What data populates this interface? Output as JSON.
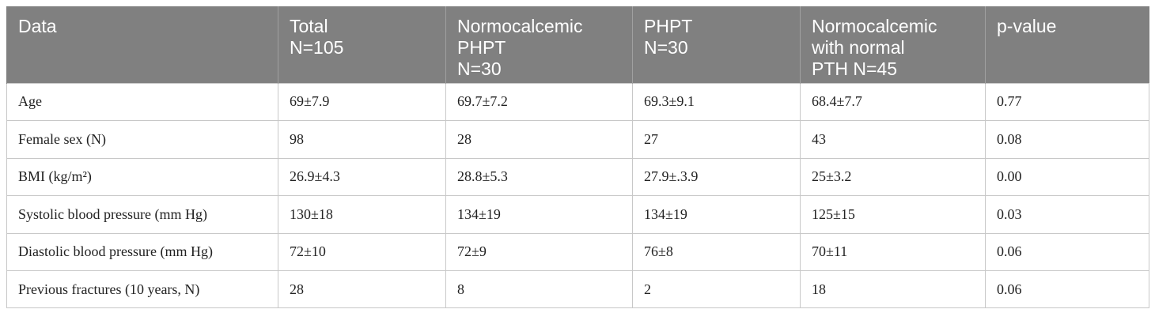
{
  "table": {
    "headers": [
      "Data",
      "Total\nN=105",
      "Normocalcemic\nPHPT\nN=30",
      "PHPT\nN=30",
      "Normocalcemic\nwith normal\nPTH N=45",
      "p-value"
    ],
    "rows": [
      [
        "Age",
        "69±7.9",
        "69.7±7.2",
        "69.3±9.1",
        "68.4±7.7",
        "0.77"
      ],
      [
        "Female sex (N)",
        "98",
        "28",
        "27",
        "43",
        "0.08"
      ],
      [
        "BMI (kg/m²)",
        "26.9±4.3",
        "28.8±5.3",
        "27.9±.3.9",
        "25±3.2",
        "0.00"
      ],
      [
        "Systolic blood pressure (mm Hg)",
        "130±18",
        "134±19",
        "134±19",
        "125±15",
        "0.03"
      ],
      [
        "Diastolic blood pressure (mm Hg)",
        "72±10",
        "72±9",
        "76±8",
        "70±11",
        "0.06"
      ],
      [
        "Previous fractures (10 years, N)",
        "28",
        "8",
        "2",
        "18",
        "0.06"
      ]
    ]
  }
}
